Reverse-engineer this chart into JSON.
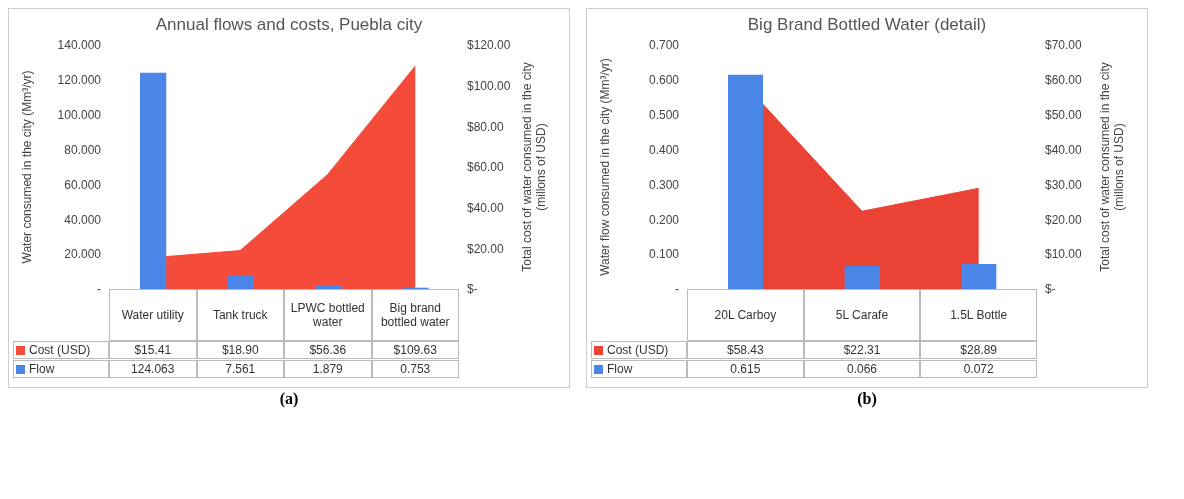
{
  "chart_data": [
    {
      "type": "bar",
      "title": "Annual flows and costs, Puebla city",
      "categories": [
        "Water utility",
        "Tank truck",
        "LPWC bottled water",
        "Big brand bottled water"
      ],
      "series": [
        {
          "name": "Cost (USD)",
          "type": "area",
          "axis": "y2",
          "color": "#f44b3a",
          "values": [
            15.41,
            18.9,
            56.36,
            109.63
          ],
          "value_labels": [
            "$15.41",
            "$18.90",
            "$56.36",
            "$109.63"
          ]
        },
        {
          "name": "Flow",
          "color": "#4a86e8",
          "values": [
            124.063,
            7.561,
            1.879,
            0.753
          ],
          "value_labels": [
            "124.063",
            "7.561",
            "1.879",
            "0.753"
          ]
        }
      ],
      "ylabel": "Water consumed in the city (Mm³/yr)",
      "y2label": "Total cost of water consumed in the city (millons of USD)",
      "ylim": [
        0,
        140
      ],
      "yticks": [
        {
          "value": 0,
          "label": "-"
        },
        {
          "value": 20,
          "label": "20.000"
        },
        {
          "value": 40,
          "label": "40.000"
        },
        {
          "value": 60,
          "label": "60.000"
        },
        {
          "value": 80,
          "label": "80.000"
        },
        {
          "value": 100,
          "label": "100.000"
        },
        {
          "value": 120,
          "label": "120.000"
        },
        {
          "value": 140,
          "label": "140.000"
        }
      ],
      "y2lim": [
        0,
        120
      ],
      "y2ticks": [
        {
          "value": 0,
          "label": "$-"
        },
        {
          "value": 20,
          "label": "$20.00"
        },
        {
          "value": 40,
          "label": "$40.00"
        },
        {
          "value": 60,
          "label": "$60.00"
        },
        {
          "value": 80,
          "label": "$80.00"
        },
        {
          "value": 100,
          "label": "$100.00"
        },
        {
          "value": 120,
          "label": "$120.00"
        }
      ],
      "legend": "bottom",
      "annotations": [
        "(a)"
      ]
    },
    {
      "type": "bar",
      "title": "Big Brand Bottled Water (detail)",
      "categories": [
        "20L Carboy",
        "5L Carafe",
        "1.5L Bottle"
      ],
      "series": [
        {
          "name": "Cost (USD)",
          "type": "area",
          "axis": "y2",
          "color": "#ea4335",
          "values": [
            58.43,
            22.31,
            28.89
          ],
          "value_labels": [
            "$58.43",
            "$22.31",
            "$28.89"
          ]
        },
        {
          "name": "Flow",
          "color": "#4a86e8",
          "values": [
            0.615,
            0.066,
            0.072
          ],
          "value_labels": [
            "0.615",
            "0.066",
            "0.072"
          ]
        }
      ],
      "ylabel": "Water flow consumed in the city (Mm³/yr)",
      "y2label": "Total cost of water consumed in the city (millons of USD)",
      "ylim": [
        0,
        0.7
      ],
      "yticks": [
        {
          "value": 0,
          "label": "-"
        },
        {
          "value": 0.1,
          "label": "0.100"
        },
        {
          "value": 0.2,
          "label": "0.200"
        },
        {
          "value": 0.3,
          "label": "0.300"
        },
        {
          "value": 0.4,
          "label": "0.400"
        },
        {
          "value": 0.5,
          "label": "0.500"
        },
        {
          "value": 0.6,
          "label": "0.600"
        },
        {
          "value": 0.7,
          "label": "0.700"
        }
      ],
      "y2lim": [
        0,
        70
      ],
      "y2ticks": [
        {
          "value": 0,
          "label": "$-"
        },
        {
          "value": 10,
          "label": "$10.00"
        },
        {
          "value": 20,
          "label": "$20.00"
        },
        {
          "value": 30,
          "label": "$30.00"
        },
        {
          "value": 40,
          "label": "$40.00"
        },
        {
          "value": 50,
          "label": "$50.00"
        },
        {
          "value": 60,
          "label": "$60.00"
        },
        {
          "value": 70,
          "label": "$70.00"
        }
      ],
      "legend": "bottom",
      "annotations": [
        "(b)"
      ]
    }
  ]
}
